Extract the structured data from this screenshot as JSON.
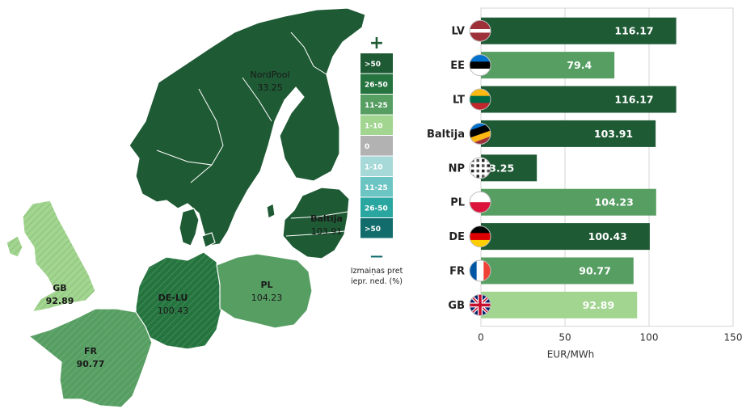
{
  "colors": {
    "dark": "#1e5a34",
    "mid_dark": "#25733f",
    "mid": "#579e63",
    "light": "#a2d590",
    "grey": "#b2b2b2",
    "teal_1": "#a7d9d8",
    "teal_2": "#6cc5c3",
    "teal_3": "#2aa6a0",
    "teal_4": "#126c6c"
  },
  "map": {
    "labels": [
      {
        "name": "NordPool",
        "value": "33.25"
      },
      {
        "name": "Baltija",
        "value": "103.91"
      },
      {
        "name": "GB",
        "value": "92.89"
      },
      {
        "name": "DE-LU",
        "value": "100.43"
      },
      {
        "name": "PL",
        "value": "104.23"
      },
      {
        "name": "FR",
        "value": "90.77"
      }
    ]
  },
  "legend": {
    "plus": "+",
    "minus": "—",
    "items": [
      ">50",
      "26-50",
      "11-25",
      "1-10",
      "0",
      "1-10",
      "11-25",
      "26-50",
      ">50"
    ],
    "note_line1": "Izmaiņas pret",
    "note_line2": "iepr. ned. (%)"
  },
  "chart_data": {
    "type": "bar",
    "orientation": "horizontal",
    "categories": [
      "LV",
      "EE",
      "LT",
      "Baltija",
      "NP",
      "PL",
      "DE",
      "FR",
      "GB"
    ],
    "values": [
      116.17,
      79.4,
      116.17,
      103.91,
      33.25,
      104.23,
      100.43,
      90.77,
      92.89
    ],
    "value_labels": [
      "116.17",
      "79.4",
      "116.17",
      "103.91",
      "33.25",
      "104.23",
      "100.43",
      "90.77",
      "92.89"
    ],
    "bar_colors": [
      "#1e5a34",
      "#579e63",
      "#1e5a34",
      "#1e5a34",
      "#1e5a34",
      "#579e63",
      "#1e5a34",
      "#579e63",
      "#a2d590"
    ],
    "flags": [
      "lv-flag-icon",
      "ee-flag-icon",
      "lt-flag-icon",
      "baltic-flag-icon",
      "np-flag-icon",
      "pl-flag-icon",
      "de-flag-icon",
      "fr-flag-icon",
      "gb-flag-icon"
    ],
    "xlim": [
      0,
      150
    ],
    "xticks": [
      0,
      50,
      100,
      150
    ],
    "xlabel": "EUR/MWh",
    "grid": true
  }
}
